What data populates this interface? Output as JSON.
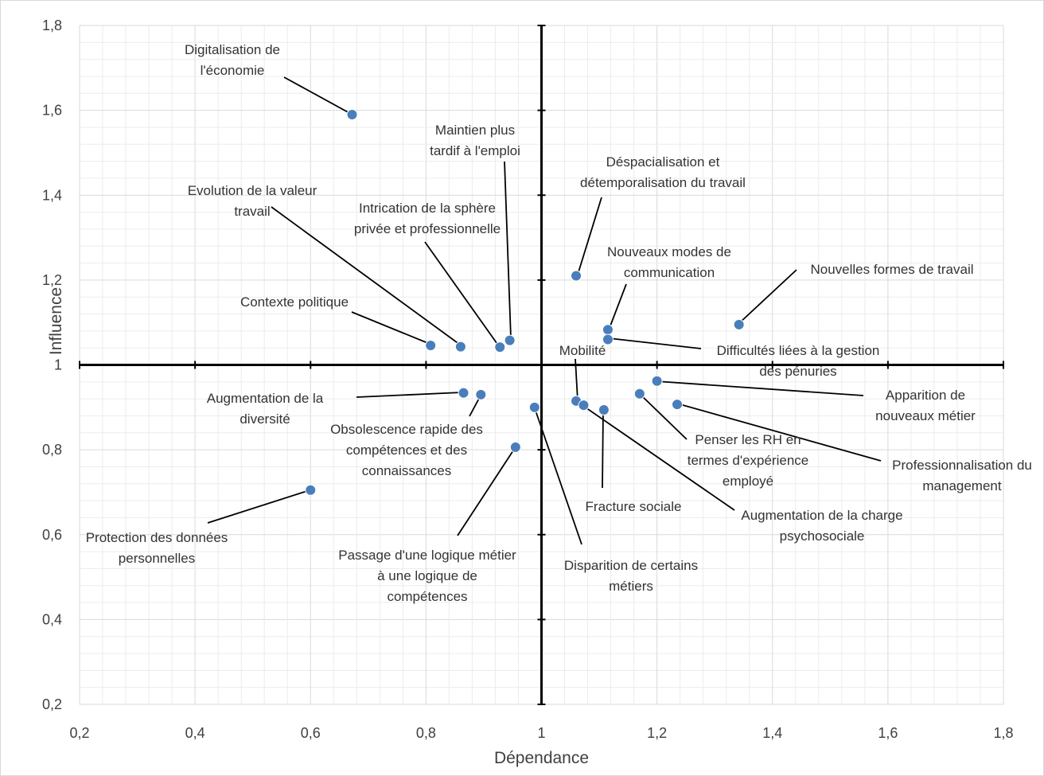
{
  "chart_data": {
    "type": "scatter",
    "xlabel": "Dépendance",
    "ylabel": "Influence",
    "xlim": [
      0.2,
      1.8
    ],
    "ylim": [
      0.2,
      1.8
    ],
    "x_ticks": [
      "0,2",
      "0,4",
      "0,6",
      "0,8",
      "1",
      "1,2",
      "1,4",
      "1,6",
      "1,8"
    ],
    "y_ticks": [
      "0,2",
      "0,4",
      "0,6",
      "0,8",
      "1",
      "1,2",
      "1,4",
      "1,6",
      "1,8"
    ],
    "quadrant_center": [
      1,
      1
    ],
    "grid": true,
    "point_color": "#4a7ebb",
    "points": [
      {
        "label": [
          "Digitalisation de",
          "l'économie"
        ],
        "x": 0.672,
        "y": 1.59
      },
      {
        "label": [
          "Maintien plus",
          "tardif à l'emploi"
        ],
        "x": 0.945,
        "y": 1.058
      },
      {
        "label": [
          "Déspacialisation et",
          "détemporalisation du travail"
        ],
        "x": 1.06,
        "y": 1.21
      },
      {
        "label": [
          "Evolution de la valeur",
          "travail"
        ],
        "x": 0.86,
        "y": 1.043
      },
      {
        "label": [
          "Intrication de la sphère",
          "privée et professionnelle"
        ],
        "x": 0.928,
        "y": 1.042
      },
      {
        "label": [
          "Nouveaux modes de",
          "communication"
        ],
        "x": 1.115,
        "y": 1.083
      },
      {
        "label": [
          "Nouvelles formes de travail"
        ],
        "x": 1.342,
        "y": 1.095
      },
      {
        "label": [
          "Contexte politique"
        ],
        "x": 0.808,
        "y": 1.046
      },
      {
        "label": [
          "Difficultés liées à la gestion",
          "des pénuries"
        ],
        "x": 1.115,
        "y": 1.06
      },
      {
        "label": [
          "Mobilité"
        ],
        "x": 1.06,
        "y": 0.915
      },
      {
        "label": [
          "Augmentation de la",
          "diversité"
        ],
        "x": 0.865,
        "y": 0.934
      },
      {
        "label": [
          "Obsolescence rapide des",
          "compétences et des",
          "connaissances"
        ],
        "x": 0.895,
        "y": 0.93
      },
      {
        "label": [
          "Apparition de",
          "nouveaux métier"
        ],
        "x": 1.2,
        "y": 0.962
      },
      {
        "label": [
          "Penser les RH en",
          "termes d'expérience",
          "employé"
        ],
        "x": 1.17,
        "y": 0.932
      },
      {
        "label": [
          "Professionnalisation du",
          "management"
        ],
        "x": 1.235,
        "y": 0.907
      },
      {
        "label": [
          "Disparition de certains",
          "métiers"
        ],
        "x": 0.988,
        "y": 0.9
      },
      {
        "label": [
          "Augmentation de la charge",
          "psychosociale"
        ],
        "x": 1.073,
        "y": 0.905
      },
      {
        "label": [
          "Fracture sociale"
        ],
        "x": 1.108,
        "y": 0.894
      },
      {
        "label": [
          "Passage d'une logique métier",
          "à une logique de",
          "compétences"
        ],
        "x": 0.955,
        "y": 0.806
      },
      {
        "label": [
          "Protection des données",
          "personnelles"
        ],
        "x": 0.6,
        "y": 0.705
      }
    ]
  }
}
